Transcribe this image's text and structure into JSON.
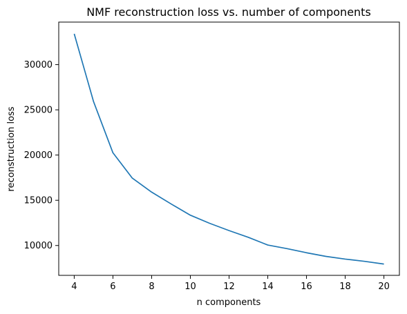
{
  "chart_data": {
    "type": "line",
    "title": "NMF reconstruction loss vs. number of components",
    "xlabel": "n components",
    "ylabel": "reconstruction loss",
    "x": [
      4,
      5,
      6,
      7,
      8,
      9,
      10,
      11,
      12,
      13,
      14,
      15,
      16,
      17,
      18,
      19,
      20
    ],
    "series": [
      {
        "values": [
          33400,
          25900,
          20250,
          17450,
          15900,
          14600,
          13350,
          12450,
          11650,
          10900,
          10050,
          9650,
          9200,
          8800,
          8500,
          8250,
          7950
        ],
        "color": "#1f77b4"
      }
    ],
    "xlim": [
      3.2,
      20.8
    ],
    "ylim": [
      6700,
      34700
    ],
    "xticks": [
      4,
      6,
      8,
      10,
      12,
      14,
      16,
      18,
      20
    ],
    "yticks": [
      10000,
      15000,
      20000,
      25000,
      30000
    ],
    "grid": false,
    "legend": "none"
  }
}
